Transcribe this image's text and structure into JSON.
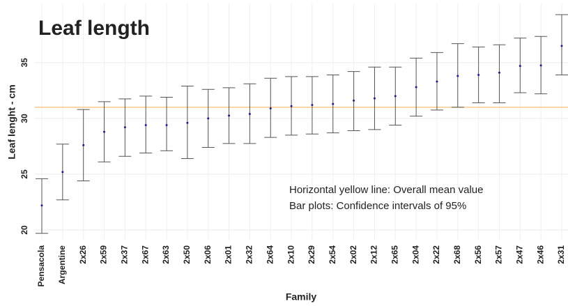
{
  "chart_data": {
    "type": "errorbar",
    "title": "Leaf length",
    "xlabel": "Family",
    "ylabel": "Leaf lenght - cm",
    "annotations": [
      "Horizontal yellow line: Overall mean value",
      "Bar plots: Confidence intervals of 95%"
    ],
    "categories": [
      "Pensacola",
      "Argentine",
      "2x26",
      "2x59",
      "2x37",
      "2x67",
      "2x63",
      "2x50",
      "2x06",
      "2x01",
      "2x32",
      "2x64",
      "2x10",
      "2x29",
      "2x54",
      "2x02",
      "2x12",
      "2x65",
      "2x04",
      "2x22",
      "2x68",
      "2x56",
      "2x57",
      "2x47",
      "2x46",
      "2x31"
    ],
    "values": [
      22.2,
      25.2,
      27.6,
      28.8,
      29.2,
      29.4,
      29.4,
      29.6,
      30.0,
      30.25,
      30.4,
      30.9,
      31.1,
      31.2,
      31.3,
      31.6,
      31.8,
      32.0,
      32.8,
      33.3,
      33.8,
      33.9,
      34.1,
      34.7,
      34.75,
      36.5
    ],
    "lower": [
      19.7,
      22.7,
      24.4,
      26.1,
      26.6,
      26.9,
      27.1,
      26.4,
      27.4,
      27.75,
      27.75,
      28.3,
      28.5,
      28.6,
      28.7,
      28.9,
      29.0,
      29.4,
      30.2,
      30.75,
      31.0,
      31.4,
      31.4,
      32.3,
      32.2,
      33.9
    ],
    "upper": [
      24.6,
      27.7,
      30.8,
      31.5,
      31.75,
      32.0,
      31.9,
      32.9,
      32.6,
      32.75,
      33.1,
      33.6,
      33.75,
      33.75,
      33.9,
      34.2,
      34.6,
      34.6,
      35.4,
      35.9,
      36.7,
      36.4,
      36.6,
      37.2,
      37.35,
      39.3
    ],
    "mean_line": {
      "value": 31.0,
      "color": "#f7c98e"
    },
    "point_color": "#1a1aa0",
    "bar_color": "#555555",
    "ylim": [
      19.06,
      40.3
    ],
    "yticks": [
      20,
      25,
      30,
      35
    ],
    "grid": true
  }
}
